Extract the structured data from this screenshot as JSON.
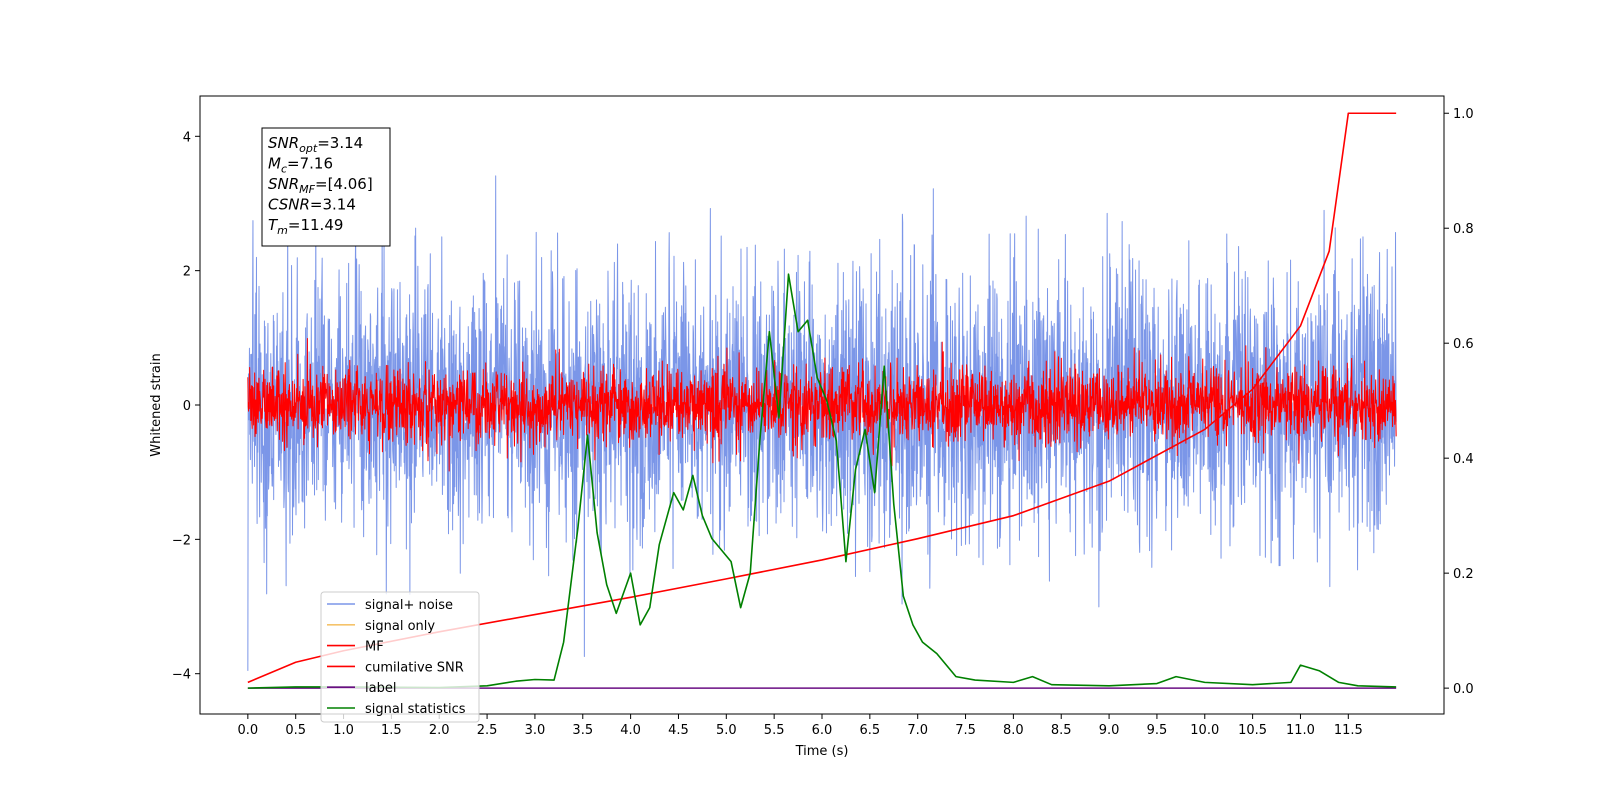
{
  "chart_data": {
    "type": "line",
    "title": "",
    "xlabel": "Time (s)",
    "ylabel": "Whitened strain",
    "xlim": [
      -0.5,
      12.5
    ],
    "ylim": [
      -4.6,
      4.6
    ],
    "y2lim": [
      -0.045,
      1.03
    ],
    "grid": false,
    "legend_position": "lower-left",
    "x_ticks": [
      "0.0",
      "0.5",
      "1.0",
      "1.5",
      "2.0",
      "2.5",
      "3.0",
      "3.5",
      "4.0",
      "4.5",
      "5.0",
      "5.5",
      "6.0",
      "6.5",
      "7.0",
      "7.5",
      "8.0",
      "8.5",
      "9.0",
      "9.5",
      "10.0",
      "10.5",
      "11.0",
      "11.5"
    ],
    "y_ticks": [
      "−4",
      "−2",
      "0",
      "2",
      "4"
    ],
    "y2_ticks": [
      "0.0",
      "0.2",
      "0.4",
      "0.6",
      "0.8",
      "1.0"
    ],
    "annotation": {
      "lines": [
        {
          "base": "SNR",
          "sub": "opt",
          "value": "=3.14"
        },
        {
          "base": "M",
          "sub": "c",
          "value": "=7.16"
        },
        {
          "base": "SNR",
          "sub": "MF",
          "value": "=[4.06]"
        },
        {
          "base": "CSNR",
          "sub": "",
          "value": "=3.14"
        },
        {
          "base": "T",
          "sub": "m",
          "value": "=11.49"
        }
      ]
    },
    "series": [
      {
        "name": "signal+ noise",
        "color": "#7b96e8",
        "axis": "left",
        "kind": "noise",
        "amplitude": 1.0,
        "x_range": [
          0,
          12
        ]
      },
      {
        "name": "signal only",
        "color": "#f5c36b",
        "axis": "left",
        "values": []
      },
      {
        "name": "MF",
        "color": "#ff0000",
        "axis": "left",
        "kind": "noise",
        "amplitude": 0.28,
        "x_range": [
          0,
          12
        ]
      },
      {
        "name": "cumilative SNR",
        "color": "#ff0000",
        "axis": "right",
        "x": [
          0.0,
          0.5,
          1.0,
          2.0,
          3.0,
          4.0,
          5.0,
          6.0,
          7.0,
          8.0,
          9.0,
          10.0,
          10.5,
          11.0,
          11.3,
          11.5,
          12.0
        ],
        "values": [
          0.01,
          0.045,
          0.065,
          0.098,
          0.128,
          0.158,
          0.19,
          0.223,
          0.26,
          0.3,
          0.36,
          0.45,
          0.52,
          0.63,
          0.76,
          1.0,
          1.0
        ]
      },
      {
        "name": "label",
        "color": "#6a0d83",
        "axis": "right",
        "x": [
          0.0,
          12.0
        ],
        "values": [
          0.0,
          0.0
        ]
      },
      {
        "name": "signal statistics",
        "color": "#008000",
        "axis": "right",
        "x": [
          0.0,
          0.5,
          1.0,
          2.0,
          2.5,
          2.8,
          3.0,
          3.2,
          3.3,
          3.45,
          3.55,
          3.65,
          3.75,
          3.85,
          4.0,
          4.1,
          4.2,
          4.3,
          4.45,
          4.55,
          4.65,
          4.75,
          4.85,
          4.95,
          5.05,
          5.15,
          5.25,
          5.35,
          5.45,
          5.55,
          5.65,
          5.75,
          5.85,
          5.95,
          6.05,
          6.15,
          6.25,
          6.35,
          6.45,
          6.55,
          6.65,
          6.75,
          6.85,
          6.95,
          7.05,
          7.2,
          7.4,
          7.6,
          8.0,
          8.2,
          8.4,
          9.0,
          9.5,
          9.7,
          10.0,
          10.5,
          10.9,
          11.0,
          11.2,
          11.4,
          11.6,
          12.0
        ],
        "values": [
          0.0,
          0.002,
          0.002,
          0.001,
          0.004,
          0.012,
          0.015,
          0.014,
          0.08,
          0.28,
          0.44,
          0.27,
          0.18,
          0.13,
          0.2,
          0.11,
          0.14,
          0.25,
          0.34,
          0.31,
          0.37,
          0.3,
          0.26,
          0.24,
          0.22,
          0.14,
          0.2,
          0.43,
          0.62,
          0.47,
          0.72,
          0.62,
          0.64,
          0.54,
          0.5,
          0.43,
          0.22,
          0.38,
          0.45,
          0.34,
          0.56,
          0.32,
          0.16,
          0.11,
          0.08,
          0.06,
          0.02,
          0.014,
          0.01,
          0.02,
          0.006,
          0.004,
          0.008,
          0.02,
          0.01,
          0.006,
          0.01,
          0.04,
          0.03,
          0.01,
          0.004,
          0.002
        ]
      }
    ]
  }
}
